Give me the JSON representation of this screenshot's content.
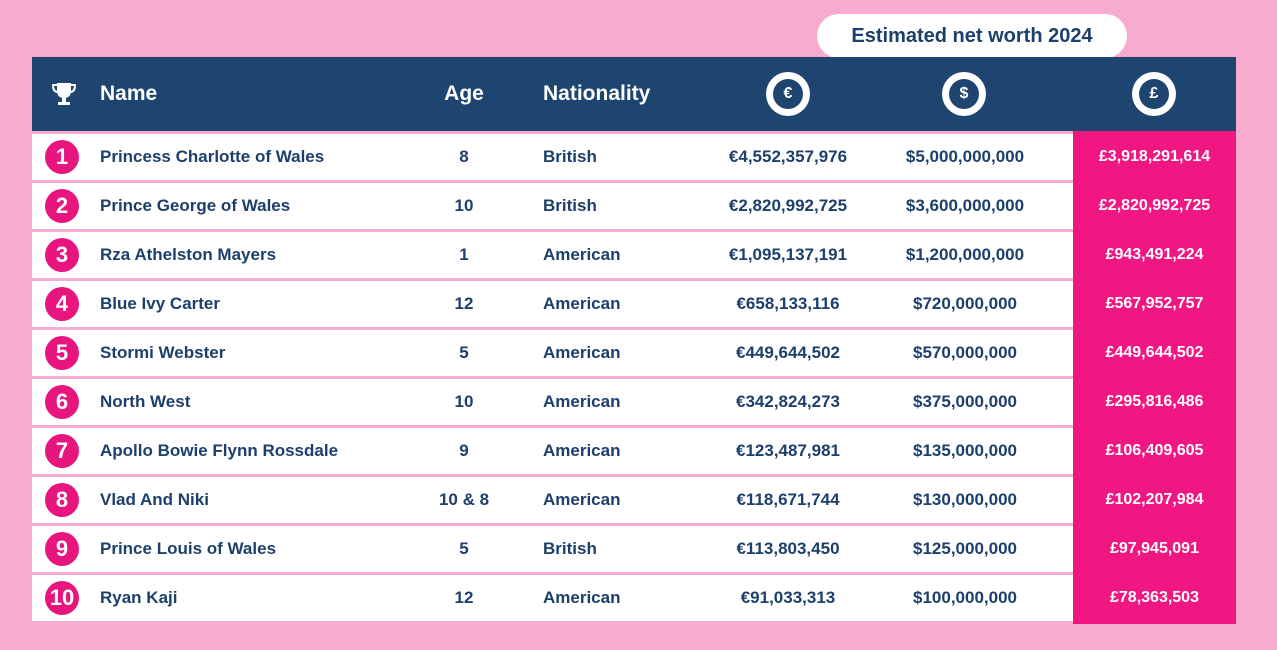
{
  "badge": "Estimated net worth 2024",
  "header": {
    "trophy_icon": "trophy-icon",
    "name": "Name",
    "age": "Age",
    "nationality": "Nationality",
    "eur_symbol": "€",
    "usd_symbol": "$",
    "gbp_symbol": "£"
  },
  "colors": {
    "background": "#f7abce",
    "header": "#1e4470",
    "accent": "#e8157f",
    "text": "#1d3f6c"
  },
  "chart_data": {
    "type": "table",
    "columns": [
      "Name",
      "Age",
      "Nationality",
      "€",
      "$",
      "£"
    ],
    "rows": [
      {
        "rank": "1",
        "name": "Princess Charlotte of Wales",
        "age": "8",
        "nationality": "British",
        "eur": "€4,552,357,976",
        "usd": "$5,000,000,000",
        "gbp": "£3,918,291,614"
      },
      {
        "rank": "2",
        "name": "Prince George of Wales",
        "age": "10",
        "nationality": "British",
        "eur": "€2,820,992,725",
        "usd": "$3,600,000,000",
        "gbp": "£2,820,992,725"
      },
      {
        "rank": "3",
        "name": "Rza Athelston Mayers",
        "age": "1",
        "nationality": "American",
        "eur": "€1,095,137,191",
        "usd": "$1,200,000,000",
        "gbp": "£943,491,224"
      },
      {
        "rank": "4",
        "name": "Blue Ivy Carter",
        "age": "12",
        "nationality": "American",
        "eur": "€658,133,116",
        "usd": "$720,000,000",
        "gbp": "£567,952,757"
      },
      {
        "rank": "5",
        "name": "Stormi Webster",
        "age": "5",
        "nationality": "American",
        "eur": "€449,644,502",
        "usd": "$570,000,000",
        "gbp": "£449,644,502"
      },
      {
        "rank": "6",
        "name": "North West",
        "age": "10",
        "nationality": "American",
        "eur": "€342,824,273",
        "usd": "$375,000,000",
        "gbp": "£295,816,486"
      },
      {
        "rank": "7",
        "name": "Apollo Bowie Flynn Rossdale",
        "age": "9",
        "nationality": "American",
        "eur": "€123,487,981",
        "usd": "$135,000,000",
        "gbp": "£106,409,605"
      },
      {
        "rank": "8",
        "name": "Vlad And Niki",
        "age": "10 & 8",
        "nationality": "American",
        "eur": "€118,671,744",
        "usd": "$130,000,000",
        "gbp": "£102,207,984"
      },
      {
        "rank": "9",
        "name": "Prince Louis of Wales",
        "age": "5",
        "nationality": "British",
        "eur": "€113,803,450",
        "usd": "$125,000,000",
        "gbp": "£97,945,091"
      },
      {
        "rank": "10",
        "name": "Ryan Kaji",
        "age": "12",
        "nationality": "American",
        "eur": "€91,033,313",
        "usd": "$100,000,000",
        "gbp": "£78,363,503"
      }
    ]
  }
}
